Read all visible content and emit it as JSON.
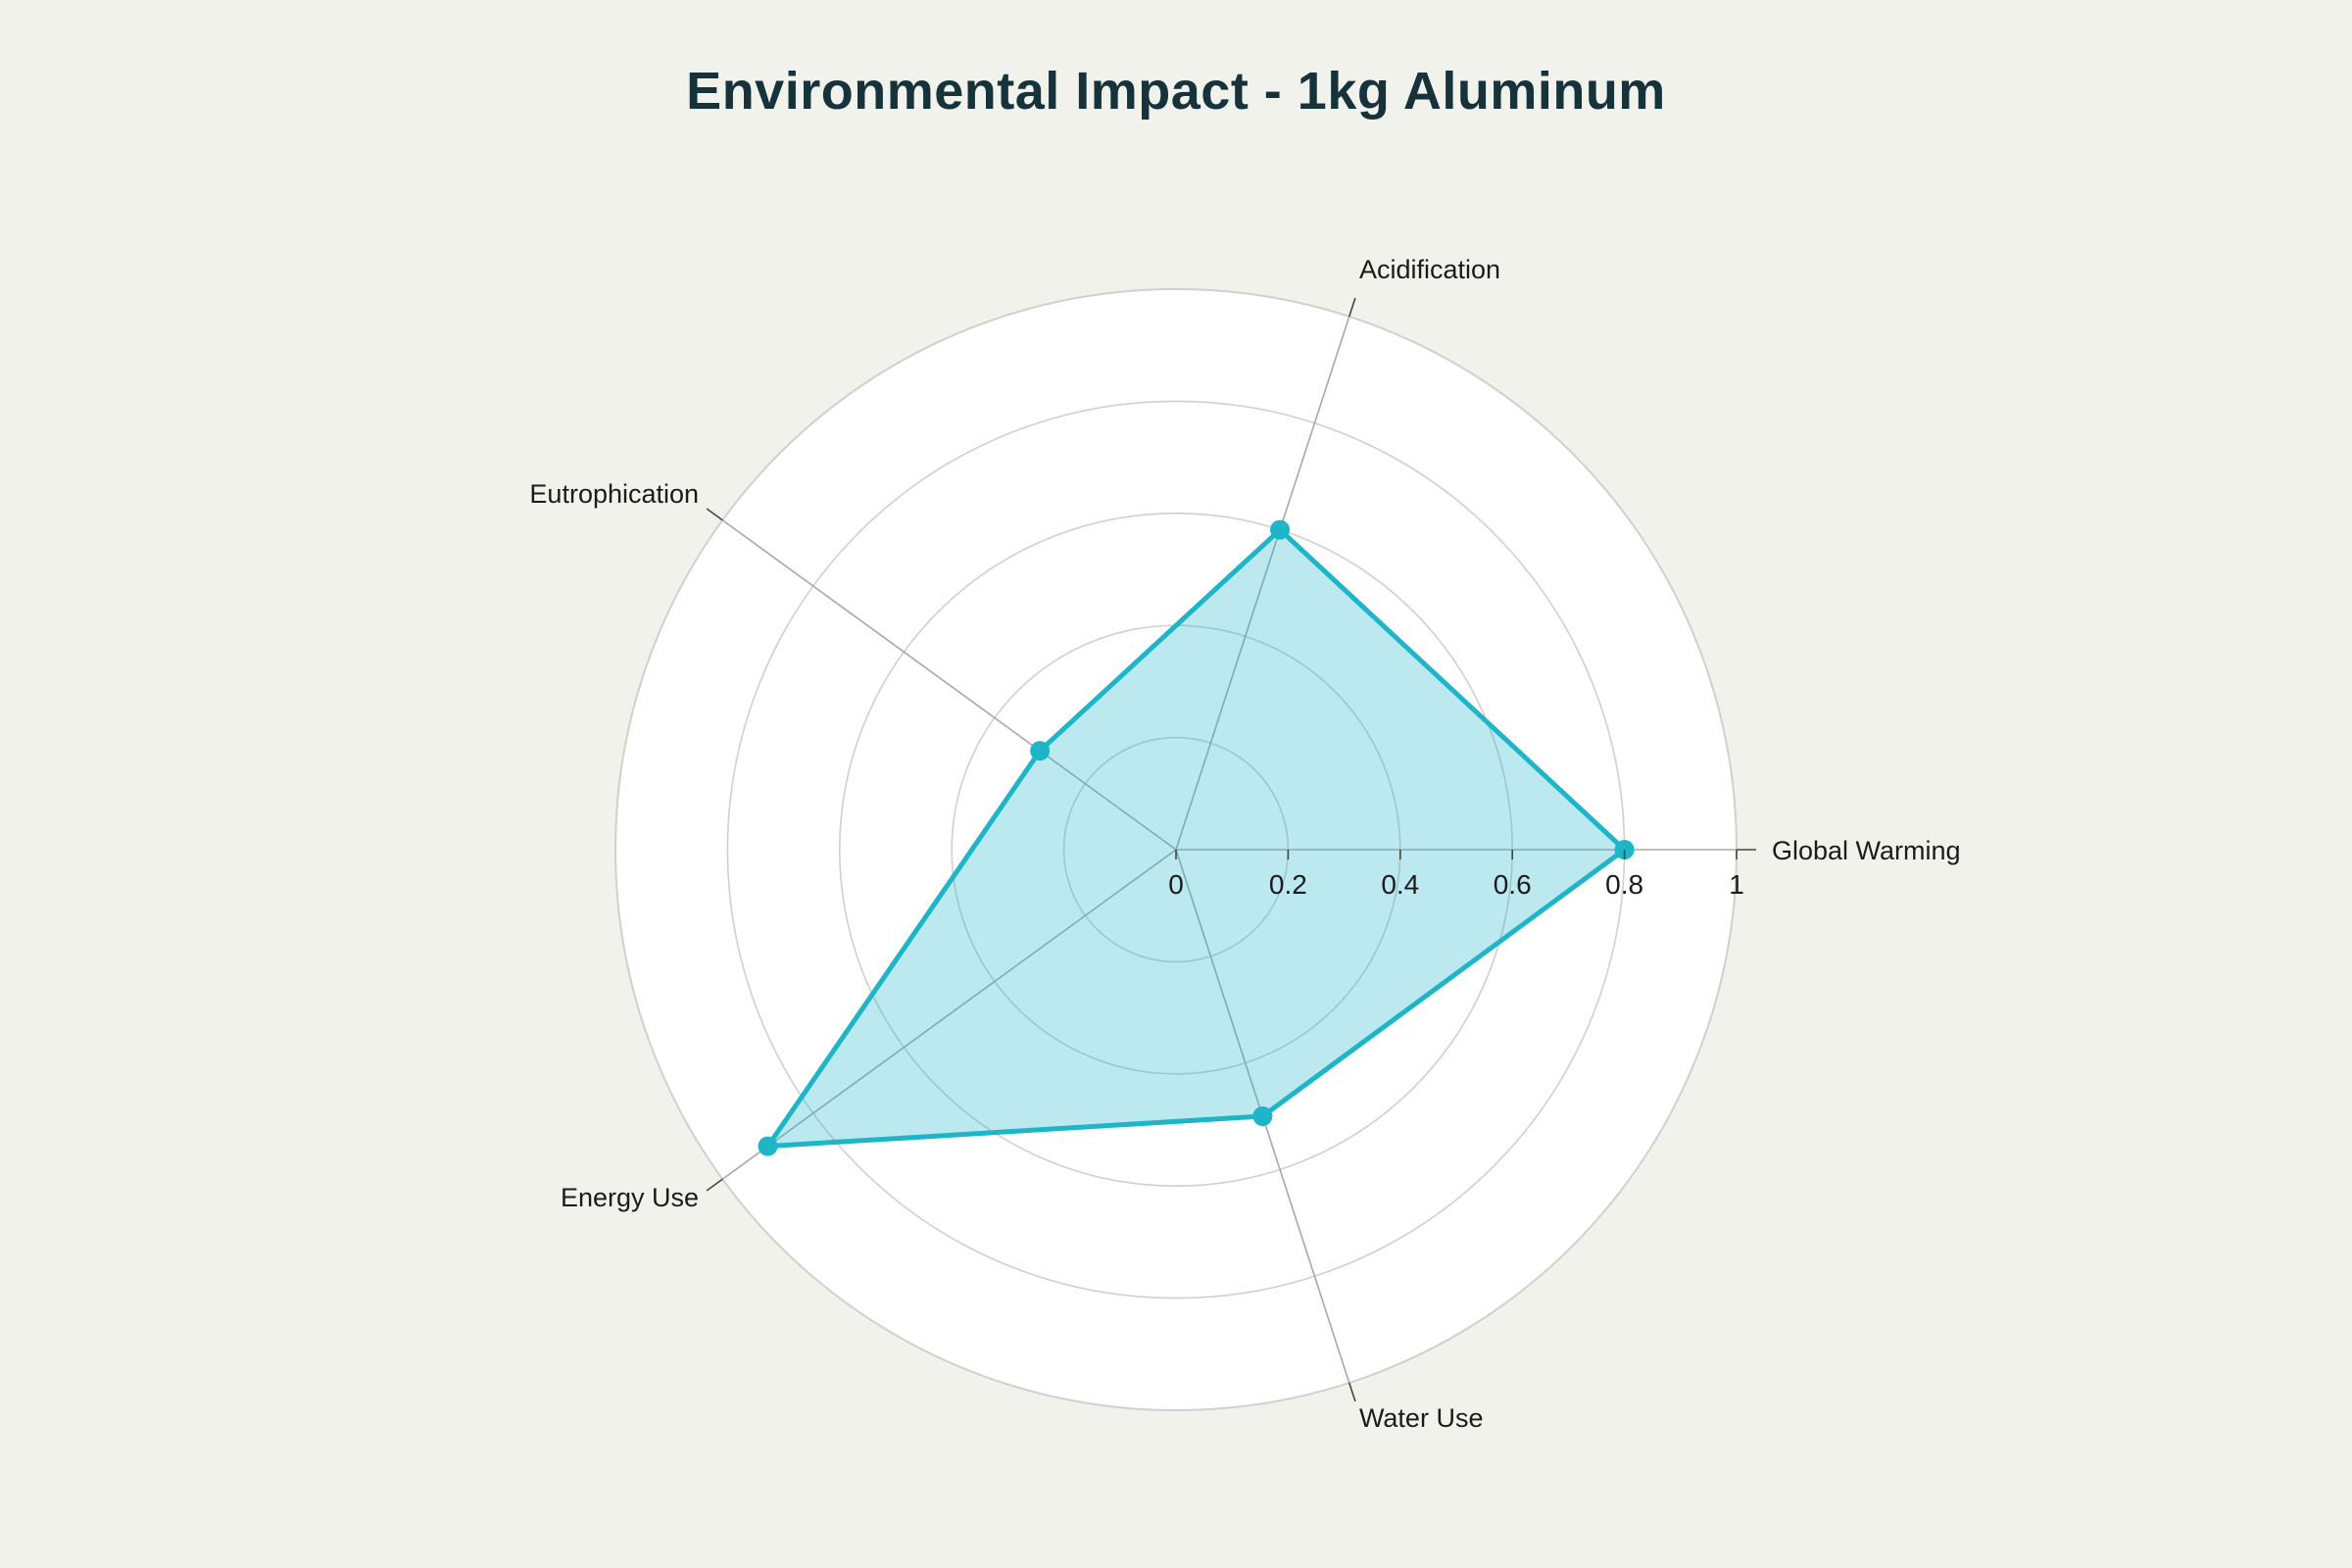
{
  "chart_data": {
    "type": "radar",
    "title": "Environmental Impact - 1kg Aluminum",
    "axes": [
      "Global Warming",
      "Acidification",
      "Eutrophication",
      "Energy Use",
      "Water Use"
    ],
    "series": [
      {
        "values": [
          0.8,
          0.6,
          0.3,
          0.9,
          0.5
        ]
      }
    ],
    "radial_range": [
      0,
      1
    ],
    "radial_ticks": [
      "0",
      "0.2",
      "0.4",
      "0.6",
      "0.8",
      "1"
    ],
    "grid": true,
    "legend": "none",
    "colors": {
      "series_line": "#1fb5c9",
      "series_fill": "#1fb5c9",
      "grid": "#d0d0cc",
      "axis_line": "#a8a8a8",
      "plot_background": "#ffffff",
      "page_background": "#f2f2ed",
      "title": "#16323a"
    }
  }
}
